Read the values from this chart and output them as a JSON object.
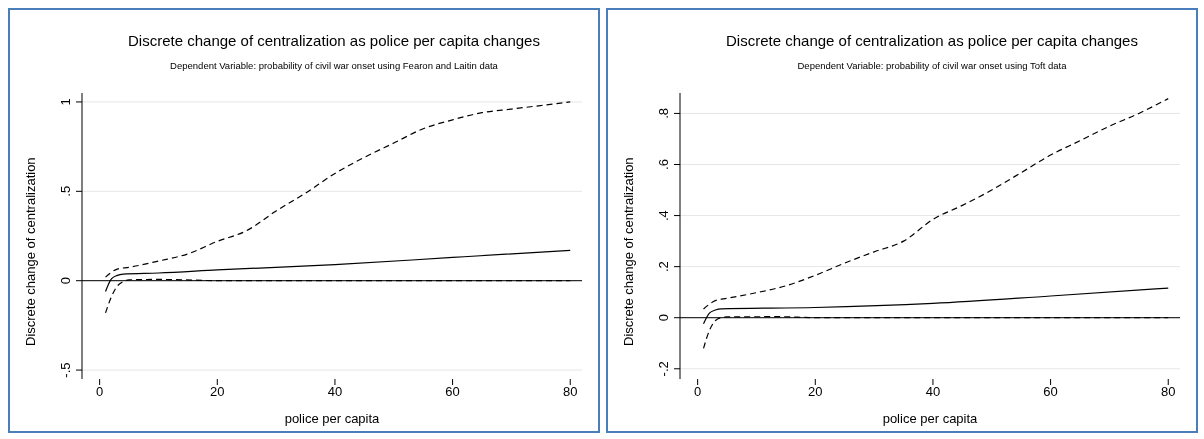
{
  "chart_data": [
    {
      "type": "line",
      "title": "Discrete change of centralization as police per capita changes",
      "subtitle": "Dependent Variable: probability of civil war onset using Fearon and Laitin data",
      "xlabel": "police per capita",
      "ylabel": "Discrete change of centralization",
      "xlim": [
        -3,
        82
      ],
      "ylim": [
        -0.55,
        1.05
      ],
      "xticks": [
        0,
        20,
        40,
        60,
        80
      ],
      "yticks": [
        {
          "value": -0.5,
          "label": "-.5"
        },
        {
          "value": 0,
          "label": "0"
        },
        {
          "value": 0.5,
          "label": ".5"
        },
        1
      ],
      "grid": "y",
      "marker": "none",
      "ref_lines": [
        {
          "axis": "y",
          "value": 0,
          "color": "#000000",
          "line_style": "solid"
        }
      ],
      "series": [
        {
          "color": "#000000",
          "line_style": "dashed",
          "x": [
            1,
            3,
            5,
            10,
            15,
            20,
            25,
            30,
            35,
            40,
            45,
            50,
            55,
            60,
            65,
            70,
            75,
            80
          ],
          "values": [
            0.02,
            0.065,
            0.075,
            0.11,
            0.15,
            0.22,
            0.28,
            0.39,
            0.49,
            0.6,
            0.69,
            0.77,
            0.85,
            0.9,
            0.94,
            0.96,
            0.98,
            1.0
          ]
        },
        {
          "color": "#000000",
          "line_style": "solid",
          "x": [
            1,
            2,
            3,
            4,
            10,
            20,
            40,
            60,
            80
          ],
          "values": [
            -0.06,
            0.01,
            0.03,
            0.037,
            0.043,
            0.06,
            0.09,
            0.13,
            0.17
          ]
        },
        {
          "color": "#000000",
          "line_style": "dashed",
          "x": [
            1,
            2,
            3,
            4,
            5,
            10,
            14,
            20,
            80
          ],
          "values": [
            -0.18,
            -0.09,
            -0.03,
            -0.005,
            0.005,
            0.007,
            0.005,
            0,
            0
          ]
        }
      ]
    },
    {
      "type": "line",
      "title": "Discrete change of centralization as police per capita changes",
      "subtitle": "Dependent Variable: probability of civil war onset using Toft data",
      "xlabel": "police per capita",
      "ylabel": "Discrete change of centralization",
      "xlim": [
        -3,
        82
      ],
      "ylim": [
        -0.24,
        0.88
      ],
      "xticks": [
        0,
        20,
        40,
        60,
        80
      ],
      "yticks": [
        {
          "value": -0.2,
          "label": "-.2"
        },
        {
          "value": 0,
          "label": "0"
        },
        {
          "value": 0.2,
          "label": ".2"
        },
        {
          "value": 0.4,
          "label": ".4"
        },
        {
          "value": 0.6,
          "label": ".6"
        },
        {
          "value": 0.8,
          "label": ".8"
        }
      ],
      "grid": "y",
      "marker": "none",
      "ref_lines": [
        {
          "axis": "y",
          "value": 0,
          "color": "#000000",
          "line_style": "solid"
        }
      ],
      "series": [
        {
          "color": "#000000",
          "line_style": "dashed",
          "x": [
            1,
            3,
            5,
            10,
            15,
            20,
            25,
            30,
            35,
            40,
            45,
            50,
            55,
            60,
            65,
            70,
            75,
            80
          ],
          "values": [
            0.034,
            0.067,
            0.076,
            0.098,
            0.125,
            0.166,
            0.214,
            0.258,
            0.3,
            0.385,
            0.44,
            0.5,
            0.568,
            0.637,
            0.693,
            0.75,
            0.8,
            0.858
          ]
        },
        {
          "color": "#000000",
          "line_style": "solid",
          "x": [
            1,
            2,
            3,
            4,
            20,
            40,
            60,
            80
          ],
          "values": [
            -0.024,
            0.018,
            0.03,
            0.035,
            0.04,
            0.056,
            0.085,
            0.116
          ]
        },
        {
          "color": "#000000",
          "line_style": "dashed",
          "x": [
            1,
            2,
            3,
            4,
            5,
            14,
            20,
            80
          ],
          "values": [
            -0.12,
            -0.05,
            -0.012,
            0,
            0.003,
            0.004,
            0,
            0
          ]
        }
      ]
    }
  ]
}
